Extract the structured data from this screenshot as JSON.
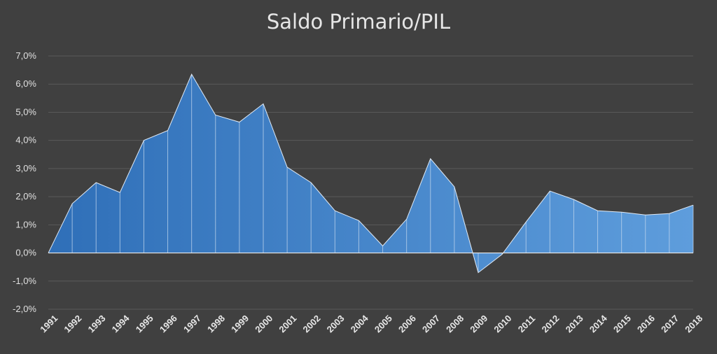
{
  "chart_data": {
    "type": "area",
    "title": "Saldo Primario/PIL",
    "xlabel": "",
    "ylabel": "",
    "x": [
      "1991",
      "1992",
      "1993",
      "1994",
      "1995",
      "1996",
      "1997",
      "1998",
      "1999",
      "2000",
      "2001",
      "2002",
      "2003",
      "2004",
      "2005",
      "2006",
      "2007",
      "2008",
      "2009",
      "2010",
      "2011",
      "2012",
      "2013",
      "2014",
      "2015",
      "2016",
      "2017",
      "2018"
    ],
    "values": [
      0.0,
      1.75,
      2.5,
      2.15,
      4.0,
      4.35,
      6.35,
      4.9,
      4.65,
      5.3,
      3.05,
      2.5,
      1.5,
      1.15,
      0.25,
      1.2,
      3.35,
      2.35,
      -0.7,
      -0.05,
      1.1,
      2.2,
      1.9,
      1.5,
      1.45,
      1.35,
      1.4,
      1.7
    ],
    "ylim": [
      -2.0,
      7.0
    ],
    "yticks": [
      -2.0,
      -1.0,
      0.0,
      1.0,
      2.0,
      3.0,
      4.0,
      5.0,
      6.0,
      7.0
    ],
    "ytick_labels": [
      "-2,0%",
      "-1,0%",
      "0,0%",
      "1,0%",
      "2,0%",
      "3,0%",
      "4,0%",
      "5,0%",
      "6,0%",
      "7,0%"
    ],
    "grid": true,
    "legend": "none",
    "colors": {
      "background": "#404040",
      "fill_start": "#2f6fb8",
      "fill_end": "#5e9ddc",
      "grid": "#5a5a5a",
      "text": "#e0e0e0"
    }
  }
}
